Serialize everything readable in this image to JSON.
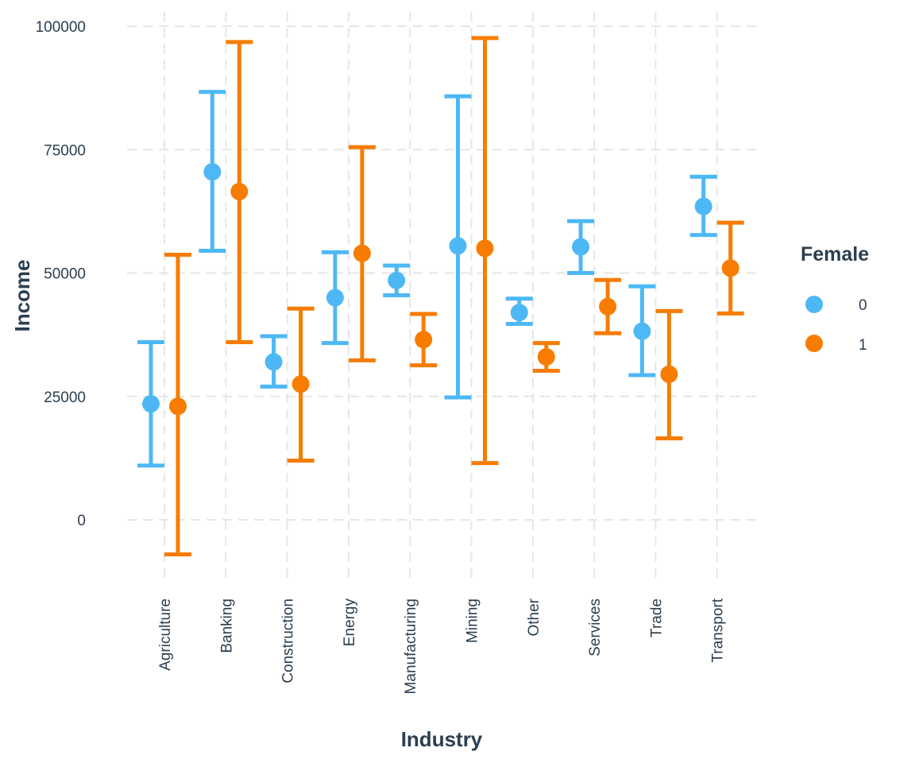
{
  "chart_data": {
    "type": "errorbar",
    "xlabel": "Industry",
    "ylabel": "Income",
    "ylim": [
      -13000,
      104000
    ],
    "yticks": [
      0,
      25000,
      50000,
      75000,
      100000
    ],
    "ytick_labels": [
      "0",
      "25000",
      "50000",
      "75000",
      "100000"
    ],
    "grid": true,
    "legend": {
      "title": "Female",
      "placement": "right"
    },
    "categories": [
      "Agriculture",
      "Banking",
      "Construction",
      "Energy",
      "Manufacturing",
      "Mining",
      "Other",
      "Services",
      "Trade",
      "Transport"
    ],
    "series": [
      {
        "name": "0",
        "color": "#4db8f5",
        "mean": [
          23500,
          70500,
          32000,
          45000,
          48500,
          55500,
          42000,
          55300,
          38200,
          63500
        ],
        "lower": [
          11000,
          54500,
          27000,
          35800,
          45500,
          24800,
          39700,
          50000,
          29300,
          57700
        ],
        "upper": [
          36000,
          86700,
          37200,
          54200,
          51500,
          85800,
          44800,
          60500,
          47300,
          69500
        ]
      },
      {
        "name": "1",
        "color": "#f77c00",
        "mean": [
          23000,
          66500,
          27500,
          54000,
          36500,
          55000,
          33000,
          43200,
          29500,
          51000
        ],
        "lower": [
          -7000,
          36000,
          12000,
          32300,
          31300,
          11500,
          30200,
          37800,
          16500,
          41800
        ],
        "upper": [
          53700,
          96800,
          42800,
          75500,
          41700,
          97600,
          35800,
          48600,
          42300,
          60200
        ]
      }
    ]
  }
}
